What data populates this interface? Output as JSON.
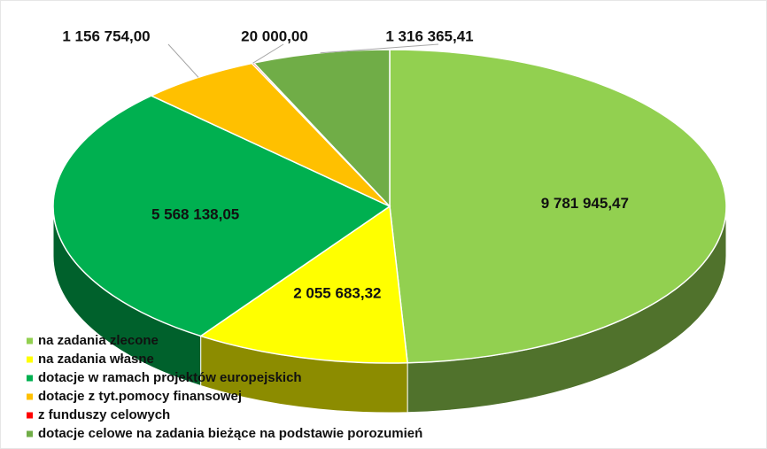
{
  "chart_data": {
    "type": "pie3d",
    "categories": [
      "na zadania zlecone",
      "na zadania własne",
      "dotacje w ramach projektów europejskich",
      "dotacje z tyt.pomocy finansowej",
      "z funduszy celowych",
      "dotacje celowe na zadania bieżące na podstawie porozumień"
    ],
    "values": [
      9781945.47,
      2055683.32,
      5568138.05,
      1156754.0,
      20000.0,
      1316365.41
    ],
    "value_labels": [
      "9 781 945,47",
      "2 055 683,32",
      "5 568 138,05",
      "1 156 754,00",
      "20 000,00",
      "1 316 365,41"
    ],
    "colors": [
      "#92d050",
      "#ffff00",
      "#00b050",
      "#ffc000",
      "#ff0000",
      "#70ad47"
    ],
    "legend": "bottom-left"
  }
}
